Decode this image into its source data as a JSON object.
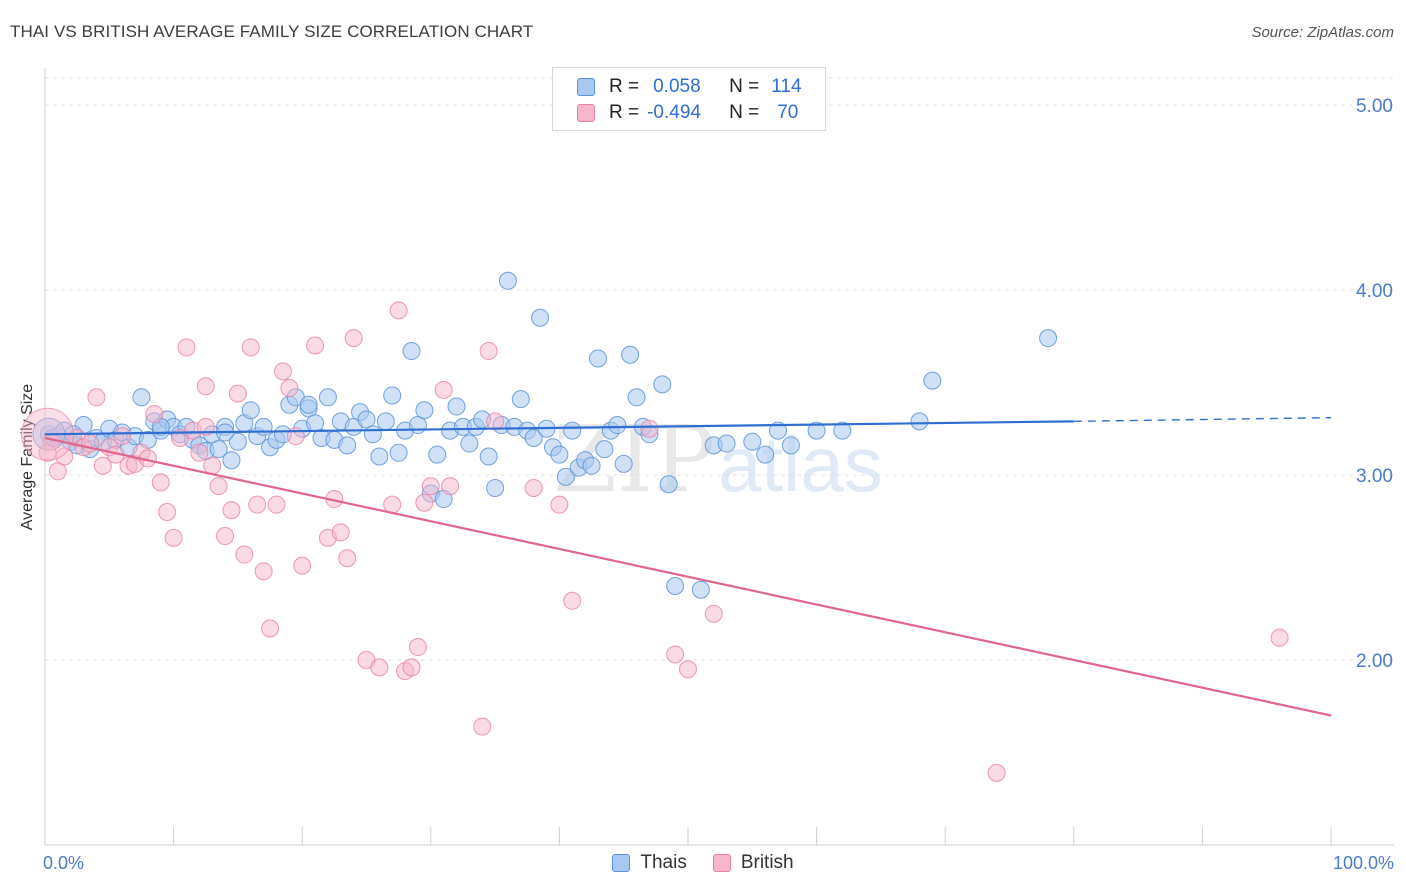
{
  "header": {
    "title": "THAI VS BRITISH AVERAGE FAMILY SIZE CORRELATION CHART",
    "source": "Source: ZipAtlas.com"
  },
  "colors": {
    "thais_fill": "#a9c8f0",
    "thais_stroke": "#5b93da",
    "thais_line": "#2f6fd1",
    "british_fill": "#f6b6cb",
    "british_stroke": "#e8829f",
    "british_line": "#e0668e",
    "grid": "#e3e3e3",
    "axis_text": "#4a7cc9"
  },
  "legend": {
    "rows": [
      {
        "r_label": "R =",
        "r_value": "0.058",
        "n_label": "N =",
        "n_value": "114"
      },
      {
        "r_label": "R =",
        "r_value": "-0.494",
        "n_label": "N =",
        "n_value": "70"
      }
    ],
    "bottom": [
      "Thais",
      "British"
    ]
  },
  "chart_data": {
    "type": "scatter",
    "title": "THAI VS BRITISH AVERAGE FAMILY SIZE CORRELATION CHART",
    "xlabel": "",
    "ylabel": "Average Family Size",
    "xlim": [
      0,
      100
    ],
    "ylim": [
      1.0,
      5.2
    ],
    "x_tick_labels": [
      "0.0%",
      "100.0%"
    ],
    "y_ticks": [
      2.0,
      3.0,
      4.0,
      5.0
    ],
    "y_tick_labels": [
      "2.00",
      "3.00",
      "4.00",
      "5.00"
    ],
    "grid": true,
    "legend_position": "top-center",
    "watermark": "ZIPatlas",
    "series": [
      {
        "name": "Thais",
        "trend": {
          "x0": 0,
          "y0": 3.22,
          "x1": 80,
          "y1": 3.29,
          "dashed_to_x": 100,
          "dashed_to_y": 3.31
        },
        "points": [
          [
            0.3,
            3.22
          ],
          [
            0.6,
            3.2
          ],
          [
            1.0,
            3.21
          ],
          [
            1.5,
            3.24
          ],
          [
            2.0,
            3.18
          ],
          [
            2.5,
            3.16
          ],
          [
            3.0,
            3.27
          ],
          [
            3.5,
            3.14
          ],
          [
            4.0,
            3.2
          ],
          [
            4.5,
            3.18
          ],
          [
            5.0,
            3.25
          ],
          [
            5.5,
            3.19
          ],
          [
            6.0,
            3.23
          ],
          [
            6.5,
            3.15
          ],
          [
            7.0,
            3.21
          ],
          [
            7.5,
            3.42
          ],
          [
            8.0,
            3.19
          ],
          [
            8.5,
            3.29
          ],
          [
            9.0,
            3.24
          ],
          [
            9.5,
            3.3
          ],
          [
            10.0,
            3.26
          ],
          [
            10.5,
            3.22
          ],
          [
            11.0,
            3.26
          ],
          [
            11.5,
            3.19
          ],
          [
            12.0,
            3.16
          ],
          [
            12.5,
            3.13
          ],
          [
            13.0,
            3.22
          ],
          [
            13.5,
            3.14
          ],
          [
            14.0,
            3.26
          ],
          [
            14.5,
            3.08
          ],
          [
            15.0,
            3.18
          ],
          [
            15.5,
            3.28
          ],
          [
            16.0,
            3.35
          ],
          [
            16.5,
            3.21
          ],
          [
            17.0,
            3.26
          ],
          [
            17.5,
            3.15
          ],
          [
            18.0,
            3.19
          ],
          [
            18.5,
            3.22
          ],
          [
            19.0,
            3.38
          ],
          [
            19.5,
            3.42
          ],
          [
            20.0,
            3.25
          ],
          [
            20.5,
            3.36
          ],
          [
            21.0,
            3.28
          ],
          [
            21.5,
            3.2
          ],
          [
            22.0,
            3.42
          ],
          [
            22.5,
            3.19
          ],
          [
            23.0,
            3.29
          ],
          [
            23.5,
            3.16
          ],
          [
            24.0,
            3.26
          ],
          [
            24.5,
            3.34
          ],
          [
            25.0,
            3.3
          ],
          [
            25.5,
            3.22
          ],
          [
            26.0,
            3.1
          ],
          [
            26.5,
            3.29
          ],
          [
            27.0,
            3.43
          ],
          [
            27.5,
            3.12
          ],
          [
            28.0,
            3.24
          ],
          [
            28.5,
            3.67
          ],
          [
            29.0,
            3.27
          ],
          [
            29.5,
            3.35
          ],
          [
            30.0,
            2.9
          ],
          [
            30.5,
            3.11
          ],
          [
            31.0,
            2.87
          ],
          [
            31.5,
            3.24
          ],
          [
            32.0,
            3.37
          ],
          [
            32.5,
            3.26
          ],
          [
            33.0,
            3.17
          ],
          [
            33.5,
            3.26
          ],
          [
            34.0,
            3.3
          ],
          [
            34.5,
            3.1
          ],
          [
            35.0,
            2.93
          ],
          [
            35.5,
            3.27
          ],
          [
            36.0,
            4.05
          ],
          [
            36.5,
            3.26
          ],
          [
            37.0,
            3.41
          ],
          [
            37.5,
            3.24
          ],
          [
            38.0,
            3.2
          ],
          [
            38.5,
            3.85
          ],
          [
            39.0,
            3.25
          ],
          [
            39.5,
            3.15
          ],
          [
            40.0,
            3.11
          ],
          [
            40.5,
            2.99
          ],
          [
            41.0,
            3.24
          ],
          [
            41.5,
            3.04
          ],
          [
            42.0,
            3.08
          ],
          [
            42.5,
            3.05
          ],
          [
            43.0,
            3.63
          ],
          [
            43.5,
            3.14
          ],
          [
            44.0,
            3.24
          ],
          [
            44.5,
            3.27
          ],
          [
            45.0,
            3.06
          ],
          [
            45.5,
            3.65
          ],
          [
            46.0,
            3.42
          ],
          [
            46.5,
            3.26
          ],
          [
            47.0,
            3.22
          ],
          [
            48.0,
            3.49
          ],
          [
            48.5,
            2.95
          ],
          [
            49.0,
            2.4
          ],
          [
            51.0,
            2.38
          ],
          [
            52.0,
            3.16
          ],
          [
            53.0,
            3.17
          ],
          [
            55.0,
            3.18
          ],
          [
            56.0,
            3.11
          ],
          [
            57.0,
            3.24
          ],
          [
            58.0,
            3.16
          ],
          [
            60.0,
            3.24
          ],
          [
            62.0,
            3.24
          ],
          [
            68.0,
            3.29
          ],
          [
            69.0,
            3.51
          ],
          [
            78.0,
            3.74
          ],
          [
            20.5,
            3.38
          ],
          [
            14.0,
            3.23
          ],
          [
            9.0,
            3.26
          ],
          [
            2.2,
            3.22
          ]
        ]
      },
      {
        "name": "British",
        "trend": {
          "x0": 0,
          "y0": 3.2,
          "x1": 100,
          "y1": 1.7
        },
        "points": [
          [
            0.5,
            3.18
          ],
          [
            1.0,
            3.02
          ],
          [
            1.5,
            3.1
          ],
          [
            2.5,
            3.2
          ],
          [
            3.0,
            3.15
          ],
          [
            3.5,
            3.17
          ],
          [
            4.0,
            3.42
          ],
          [
            4.5,
            3.05
          ],
          [
            5.0,
            3.15
          ],
          [
            5.5,
            3.11
          ],
          [
            6.0,
            3.21
          ],
          [
            6.5,
            3.05
          ],
          [
            7.0,
            3.06
          ],
          [
            7.5,
            3.12
          ],
          [
            8.0,
            3.09
          ],
          [
            8.5,
            3.33
          ],
          [
            9.0,
            2.96
          ],
          [
            9.5,
            2.8
          ],
          [
            10.0,
            2.66
          ],
          [
            10.5,
            3.2
          ],
          [
            11.0,
            3.69
          ],
          [
            11.5,
            3.24
          ],
          [
            12.0,
            3.12
          ],
          [
            12.5,
            3.48
          ],
          [
            13.0,
            3.05
          ],
          [
            13.5,
            2.94
          ],
          [
            14.0,
            2.67
          ],
          [
            14.5,
            2.81
          ],
          [
            15.0,
            3.44
          ],
          [
            15.5,
            2.57
          ],
          [
            16.0,
            3.69
          ],
          [
            16.5,
            2.84
          ],
          [
            17.0,
            2.48
          ],
          [
            17.5,
            2.17
          ],
          [
            18.0,
            2.84
          ],
          [
            18.5,
            3.56
          ],
          [
            19.0,
            3.47
          ],
          [
            19.5,
            3.21
          ],
          [
            20.0,
            2.51
          ],
          [
            21.0,
            3.7
          ],
          [
            22.0,
            2.66
          ],
          [
            22.5,
            2.87
          ],
          [
            23.0,
            2.69
          ],
          [
            23.5,
            2.55
          ],
          [
            24.0,
            3.74
          ],
          [
            25.0,
            2.0
          ],
          [
            26.0,
            1.96
          ],
          [
            27.0,
            2.84
          ],
          [
            27.5,
            3.89
          ],
          [
            28.0,
            1.94
          ],
          [
            28.5,
            1.96
          ],
          [
            29.0,
            2.07
          ],
          [
            29.5,
            2.85
          ],
          [
            30.0,
            2.94
          ],
          [
            31.0,
            3.46
          ],
          [
            31.5,
            2.94
          ],
          [
            34.0,
            1.64
          ],
          [
            34.5,
            3.67
          ],
          [
            35.0,
            3.29
          ],
          [
            38.0,
            2.93
          ],
          [
            40.0,
            2.84
          ],
          [
            41.0,
            2.32
          ],
          [
            47.0,
            3.25
          ],
          [
            49.0,
            2.03
          ],
          [
            50.0,
            1.95
          ],
          [
            52.0,
            2.25
          ],
          [
            74.0,
            1.39
          ],
          [
            96.0,
            2.12
          ],
          [
            0.2,
            3.12
          ],
          [
            12.5,
            3.26
          ]
        ]
      }
    ]
  }
}
